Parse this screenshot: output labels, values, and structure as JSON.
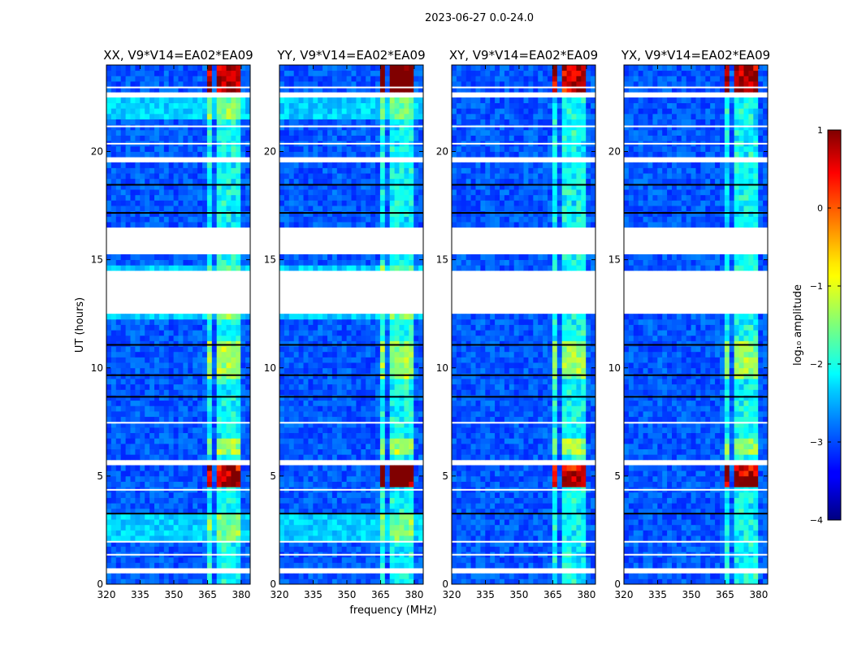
{
  "figure": {
    "suptitle": "2023-06-27 0.0-24.0"
  },
  "chart_data": {
    "type": "heatmap",
    "ylabel": "UT (hours)",
    "xlabel": "frequency (MHz)",
    "xlim": [
      320,
      384
    ],
    "ylim": [
      0,
      24
    ],
    "xticks": [
      320,
      335,
      350,
      365,
      380
    ],
    "yticks": [
      0,
      5,
      10,
      15,
      20
    ],
    "panels": [
      {
        "title": "XX, V9*V14=EA02*EA09",
        "cross": false,
        "rfi_peak_hours": [
          5.1,
          23.3
        ],
        "band_strength": 0.55
      },
      {
        "title": "YY, V9*V14=EA02*EA09",
        "cross": false,
        "rfi_peak_hours": [
          5.1,
          23.3
        ],
        "band_strength": 0.75
      },
      {
        "title": "XY, V9*V14=EA02*EA09",
        "cross": true,
        "rfi_peak_hours": [
          5.1,
          23.3
        ],
        "band_strength": 0.55
      },
      {
        "title": "YX, V9*V14=EA02*EA09",
        "cross": true,
        "rfi_peak_hours": [
          5.1,
          23.3
        ],
        "band_strength": 0.6
      }
    ],
    "rfi_band_mhz": [
      363,
      381
    ],
    "flagged_hours": [
      [
        12.5,
        14.4
      ],
      [
        15.3,
        16.5
      ],
      [
        5.5,
        5.85
      ],
      [
        0.4,
        0.7
      ],
      [
        3.9,
        4.1
      ],
      [
        19.6,
        19.8
      ],
      [
        22.5,
        22.8
      ]
    ],
    "colorbar": {
      "label": "log₁₀ amplitude",
      "min": -4,
      "max": 1,
      "ticks": [
        1,
        0,
        -1,
        -2,
        -3,
        -4
      ],
      "tick_labels": [
        "1",
        "0",
        "−1",
        "−2",
        "−3",
        "−4"
      ]
    }
  }
}
